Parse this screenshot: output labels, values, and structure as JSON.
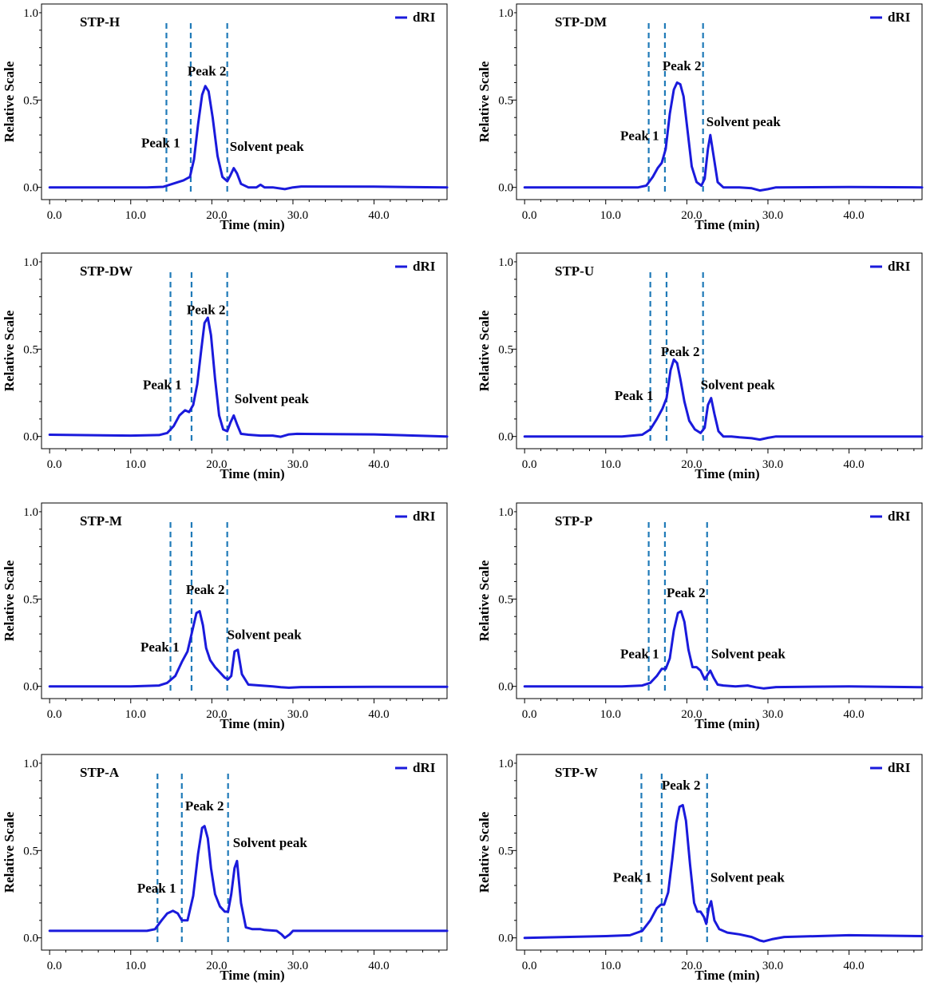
{
  "colors": {
    "trace": "#1a1adc",
    "divider": "#1f7ab8",
    "axis": "#000000"
  },
  "chart_data": [
    {
      "type": "line",
      "title": "STP-H",
      "xlabel": "Time (min)",
      "ylabel": "Relative Scale",
      "xlim": [
        -1,
        49
      ],
      "ylim": [
        -0.07,
        1.05
      ],
      "xticks": [
        "0.0",
        "10.0",
        "20.0",
        "30.0",
        "40.0"
      ],
      "yticks": [
        "0.0",
        "0.5",
        "1.0"
      ],
      "legend": "dRI",
      "legend_position": "top-right",
      "dividers": [
        14.4,
        17.4,
        21.9
      ],
      "annotations": [
        {
          "text": "Peak 1",
          "x": 11.3,
          "y": 0.23
        },
        {
          "text": "Peak 2",
          "x": 17.0,
          "y": 0.64
        },
        {
          "text": "Solvent peak",
          "x": 22.2,
          "y": 0.21
        }
      ],
      "series": [
        {
          "name": "dRI",
          "x": [
            0,
            12,
            14,
            15.5,
            16.5,
            17.3,
            17.8,
            18.3,
            18.8,
            19.2,
            19.6,
            20.1,
            20.7,
            21.3,
            21.9,
            22.3,
            22.7,
            23.1,
            23.6,
            24.5,
            25.5,
            26,
            26.5,
            27.5,
            29,
            30,
            31,
            40,
            49
          ],
          "y": [
            0.0,
            0.0,
            0.003,
            0.025,
            0.04,
            0.06,
            0.16,
            0.36,
            0.53,
            0.58,
            0.55,
            0.4,
            0.18,
            0.06,
            0.035,
            0.07,
            0.11,
            0.08,
            0.02,
            0.0,
            0.0,
            0.015,
            0.0,
            0.0,
            -0.01,
            0.0,
            0.005,
            0.004,
            0.0
          ]
        }
      ]
    },
    {
      "type": "line",
      "title": "STP-DM",
      "xlabel": "Time (min)",
      "ylabel": "Relative Scale",
      "xlim": [
        -1,
        49
      ],
      "ylim": [
        -0.07,
        1.05
      ],
      "xticks": [
        "0.0",
        "10.0",
        "20.0",
        "30.0",
        "40.0"
      ],
      "yticks": [
        "0.0",
        "0.5",
        "1.0"
      ],
      "legend": "dRI",
      "legend_position": "top-right",
      "dividers": [
        15.3,
        17.3,
        22.0
      ],
      "annotations": [
        {
          "text": "Peak 1",
          "x": 11.8,
          "y": 0.27
        },
        {
          "text": "Peak 2",
          "x": 17.0,
          "y": 0.67
        },
        {
          "text": "Solvent peak",
          "x": 22.4,
          "y": 0.35
        }
      ],
      "series": [
        {
          "name": "dRI",
          "x": [
            0,
            14,
            15,
            15.8,
            16.4,
            16.9,
            17.4,
            17.9,
            18.4,
            18.8,
            19.2,
            19.6,
            20.1,
            20.6,
            21.2,
            21.8,
            22.2,
            22.6,
            22.9,
            23.3,
            23.8,
            24.5,
            25.5,
            26.5,
            28,
            29,
            30,
            31,
            40,
            49
          ],
          "y": [
            0.0,
            0.0,
            0.01,
            0.06,
            0.11,
            0.14,
            0.22,
            0.42,
            0.56,
            0.6,
            0.59,
            0.52,
            0.32,
            0.12,
            0.03,
            0.01,
            0.05,
            0.22,
            0.3,
            0.18,
            0.03,
            0.0,
            0.0,
            0.0,
            -0.005,
            -0.018,
            -0.01,
            0.0,
            0.002,
            0.0
          ]
        }
      ]
    },
    {
      "type": "line",
      "title": "STP-DW",
      "xlabel": "Time (min)",
      "ylabel": "Relative Scale",
      "xlim": [
        -1,
        49
      ],
      "ylim": [
        -0.07,
        1.05
      ],
      "xticks": [
        "0.0",
        "10.0",
        "20.0",
        "30.0",
        "40.0"
      ],
      "yticks": [
        "0.0",
        "0.5",
        "1.0"
      ],
      "legend": "dRI",
      "legend_position": "top-right",
      "dividers": [
        14.9,
        17.5,
        21.9
      ],
      "annotations": [
        {
          "text": "Peak 1",
          "x": 11.5,
          "y": 0.27
        },
        {
          "text": "Peak 2",
          "x": 16.9,
          "y": 0.7
        },
        {
          "text": "Solvent peak",
          "x": 22.8,
          "y": 0.19
        }
      ],
      "series": [
        {
          "name": "dRI",
          "x": [
            0,
            10,
            13.5,
            14.5,
            15.3,
            16,
            16.7,
            17.2,
            17.7,
            18.2,
            18.7,
            19.1,
            19.5,
            19.9,
            20.4,
            20.9,
            21.4,
            21.9,
            22.3,
            22.7,
            23.1,
            23.6,
            24.5,
            26,
            27.5,
            28.5,
            29.5,
            30.5,
            40,
            49
          ],
          "y": [
            0.01,
            0.005,
            0.008,
            0.02,
            0.06,
            0.12,
            0.15,
            0.14,
            0.18,
            0.3,
            0.5,
            0.65,
            0.68,
            0.58,
            0.33,
            0.12,
            0.04,
            0.03,
            0.08,
            0.12,
            0.07,
            0.015,
            0.01,
            0.005,
            0.005,
            -0.002,
            0.012,
            0.015,
            0.012,
            0.0
          ]
        }
      ]
    },
    {
      "type": "line",
      "title": "STP-U",
      "xlabel": "Time (min)",
      "ylabel": "Relative Scale",
      "xlim": [
        -1,
        49
      ],
      "ylim": [
        -0.07,
        1.05
      ],
      "xticks": [
        "0.0",
        "10.0",
        "20.0",
        "30.0",
        "40.0"
      ],
      "yticks": [
        "0.0",
        "0.5",
        "1.0"
      ],
      "legend": "dRI",
      "legend_position": "top-right",
      "dividers": [
        15.5,
        17.5,
        22.0
      ],
      "annotations": [
        {
          "text": "Peak 1",
          "x": 11.1,
          "y": 0.21
        },
        {
          "text": "Peak 2",
          "x": 16.8,
          "y": 0.46
        },
        {
          "text": "Solvent peak",
          "x": 21.7,
          "y": 0.27
        }
      ],
      "series": [
        {
          "name": "dRI",
          "x": [
            0,
            12,
            14.5,
            15.5,
            16.3,
            17,
            17.5,
            18,
            18.4,
            18.8,
            19.2,
            19.7,
            20.3,
            21,
            21.7,
            22.2,
            22.6,
            23,
            23.4,
            23.9,
            24.5,
            25.5,
            26.5,
            28,
            29,
            30,
            31,
            40,
            48,
            49
          ],
          "y": [
            0.0,
            0.0,
            0.01,
            0.04,
            0.1,
            0.16,
            0.22,
            0.38,
            0.44,
            0.42,
            0.33,
            0.2,
            0.09,
            0.04,
            0.02,
            0.05,
            0.18,
            0.22,
            0.13,
            0.03,
            0.0,
            0.0,
            -0.005,
            -0.01,
            -0.018,
            -0.008,
            0.0,
            0.0,
            0.0,
            0.0
          ]
        }
      ]
    },
    {
      "type": "line",
      "title": "STP-M",
      "xlabel": "Time (min)",
      "ylabel": "Relative Scale",
      "xlim": [
        -1,
        49
      ],
      "ylim": [
        -0.07,
        1.05
      ],
      "xticks": [
        "0.0",
        "10.0",
        "20.0",
        "30.0",
        "40.0"
      ],
      "yticks": [
        "0.0",
        "0.5",
        "1.0"
      ],
      "legend": "dRI",
      "legend_position": "top-right",
      "dividers": [
        14.9,
        17.5,
        21.9
      ],
      "annotations": [
        {
          "text": "Peak 1",
          "x": 11.2,
          "y": 0.2
        },
        {
          "text": "Peak 2",
          "x": 16.8,
          "y": 0.53
        },
        {
          "text": "Solvent peak",
          "x": 21.9,
          "y": 0.27
        }
      ],
      "series": [
        {
          "name": "dRI",
          "x": [
            0,
            10,
            13.5,
            14.5,
            15.5,
            16.3,
            17,
            17.6,
            18.1,
            18.5,
            18.9,
            19.3,
            19.8,
            20.4,
            21,
            21.6,
            22,
            22.4,
            22.8,
            23.2,
            23.7,
            24.5,
            26,
            27.5,
            28.5,
            29.5,
            31,
            40,
            49
          ],
          "y": [
            0.0,
            0.0,
            0.005,
            0.02,
            0.06,
            0.14,
            0.2,
            0.32,
            0.42,
            0.43,
            0.35,
            0.22,
            0.15,
            0.11,
            0.08,
            0.05,
            0.04,
            0.06,
            0.2,
            0.21,
            0.07,
            0.01,
            0.005,
            0.0,
            -0.005,
            -0.008,
            -0.004,
            -0.003,
            -0.003
          ]
        }
      ]
    },
    {
      "type": "line",
      "title": "STP-P",
      "xlabel": "Time (min)",
      "ylabel": "Relative Scale",
      "xlim": [
        -1,
        49
      ],
      "ylim": [
        -0.07,
        1.05
      ],
      "xticks": [
        "0.0",
        "10.0",
        "20.0",
        "30.0",
        "40.0"
      ],
      "yticks": [
        "0.0",
        "0.5",
        "1.0"
      ],
      "legend": "dRI",
      "legend_position": "top-right",
      "dividers": [
        15.3,
        17.3,
        22.5
      ],
      "annotations": [
        {
          "text": "Peak 1",
          "x": 11.8,
          "y": 0.16
        },
        {
          "text": "Peak 2",
          "x": 17.5,
          "y": 0.51
        },
        {
          "text": "Solvent peak",
          "x": 23.0,
          "y": 0.16
        }
      ],
      "series": [
        {
          "name": "dRI",
          "x": [
            0,
            12,
            14.5,
            15.5,
            16.3,
            16.9,
            17.4,
            17.9,
            18.4,
            18.9,
            19.3,
            19.7,
            20.2,
            20.7,
            21.2,
            21.7,
            22.2,
            22.6,
            22.9,
            23.3,
            23.8,
            24.5,
            26,
            27.5,
            28.5,
            29.5,
            31,
            40,
            49
          ],
          "y": [
            0.0,
            0.0,
            0.005,
            0.02,
            0.06,
            0.1,
            0.1,
            0.16,
            0.32,
            0.42,
            0.43,
            0.37,
            0.21,
            0.11,
            0.11,
            0.09,
            0.04,
            0.07,
            0.09,
            0.05,
            0.01,
            0.005,
            0.0,
            0.005,
            -0.005,
            -0.012,
            -0.004,
            0.0,
            -0.005
          ]
        }
      ]
    },
    {
      "type": "line",
      "title": "STP-A",
      "xlabel": "Time (min)",
      "ylabel": "Relative Scale",
      "xlim": [
        -1,
        49
      ],
      "ylim": [
        -0.07,
        1.05
      ],
      "xticks": [
        "0.0",
        "10.0",
        "20.0",
        "30.0",
        "40.0"
      ],
      "yticks": [
        "0.0",
        "0.5",
        "1.0"
      ],
      "legend": "dRI",
      "legend_position": "top-right",
      "dividers": [
        13.3,
        16.3,
        22.0
      ],
      "annotations": [
        {
          "text": "Peak 1",
          "x": 10.8,
          "y": 0.26
        },
        {
          "text": "Peak 2",
          "x": 16.7,
          "y": 0.73
        },
        {
          "text": "Solvent peak",
          "x": 22.6,
          "y": 0.52
        }
      ],
      "series": [
        {
          "name": "dRI",
          "x": [
            0,
            12,
            13,
            13.8,
            14.5,
            15.2,
            15.8,
            16.3,
            17,
            17.7,
            18.3,
            18.8,
            19.1,
            19.5,
            19.9,
            20.4,
            21,
            21.6,
            22,
            22.4,
            22.8,
            23.1,
            23.6,
            24.2,
            25,
            26,
            26.5,
            28,
            28.6,
            29,
            29.6,
            30,
            31,
            40,
            49
          ],
          "y": [
            0.04,
            0.04,
            0.05,
            0.1,
            0.14,
            0.155,
            0.14,
            0.1,
            0.1,
            0.24,
            0.48,
            0.63,
            0.64,
            0.57,
            0.4,
            0.25,
            0.18,
            0.15,
            0.15,
            0.25,
            0.4,
            0.44,
            0.2,
            0.06,
            0.05,
            0.05,
            0.045,
            0.04,
            0.02,
            0.0,
            0.02,
            0.04,
            0.04,
            0.04,
            0.04
          ]
        }
      ]
    },
    {
      "type": "line",
      "title": "STP-W",
      "xlabel": "Time (min)",
      "ylabel": "Relative Scale",
      "xlim": [
        -1,
        49
      ],
      "ylim": [
        -0.07,
        1.05
      ],
      "xticks": [
        "0.0",
        "10.0",
        "20.0",
        "30.0",
        "40.0"
      ],
      "yticks": [
        "0.0",
        "0.5",
        "1.0"
      ],
      "legend": "dRI",
      "legend_position": "top-right",
      "dividers": [
        14.4,
        16.9,
        22.5
      ],
      "annotations": [
        {
          "text": "Peak 1",
          "x": 10.9,
          "y": 0.32
        },
        {
          "text": "Peak 2",
          "x": 16.9,
          "y": 0.85
        },
        {
          "text": "Solvent peak",
          "x": 22.9,
          "y": 0.32
        }
      ],
      "series": [
        {
          "name": "dRI",
          "x": [
            0,
            10,
            13,
            14.5,
            15.5,
            16.3,
            16.8,
            17.2,
            17.7,
            18.2,
            18.7,
            19.1,
            19.5,
            19.9,
            20.4,
            20.9,
            21.3,
            21.7,
            22.1,
            22.4,
            22.7,
            23,
            23.4,
            24,
            25,
            26.5,
            28,
            29,
            29.5,
            30.5,
            32,
            40,
            49
          ],
          "y": [
            0.0,
            0.01,
            0.015,
            0.04,
            0.1,
            0.17,
            0.19,
            0.19,
            0.26,
            0.45,
            0.66,
            0.75,
            0.76,
            0.67,
            0.42,
            0.2,
            0.15,
            0.15,
            0.12,
            0.08,
            0.17,
            0.21,
            0.1,
            0.05,
            0.03,
            0.02,
            0.005,
            -0.015,
            -0.02,
            -0.008,
            0.005,
            0.015,
            0.01
          ]
        }
      ]
    }
  ]
}
